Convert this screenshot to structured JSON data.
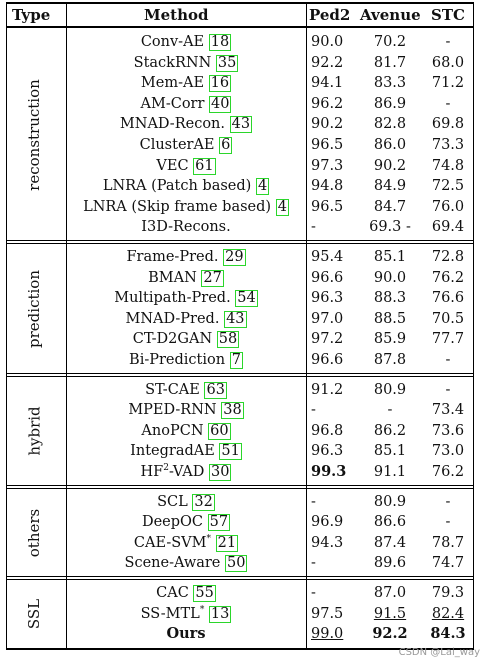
{
  "header": {
    "type": "Type",
    "method": "Method",
    "ped2": "Ped2",
    "avenue": "Avenue",
    "stc": "STC"
  },
  "groups": [
    {
      "type": "reconstruction",
      "rows": [
        {
          "method": "Conv-AE",
          "ref": "18",
          "ped2": "90.0",
          "avenue": "70.2",
          "stc": "-"
        },
        {
          "method": "StackRNN",
          "ref": "35",
          "ped2": "92.2",
          "avenue": "81.7",
          "stc": "68.0"
        },
        {
          "method": "Mem-AE",
          "ref": "16",
          "ped2": "94.1",
          "avenue": "83.3",
          "stc": "71.2"
        },
        {
          "method": "AM-Corr",
          "ref": "40",
          "ped2": "96.2",
          "avenue": "86.9",
          "stc": "-"
        },
        {
          "method": "MNAD-Recon.",
          "ref": "43",
          "ped2": "90.2",
          "avenue": "82.8",
          "stc": "69.8"
        },
        {
          "method": "ClusterAE",
          "ref": "6",
          "ped2": "96.5",
          "avenue": "86.0",
          "stc": "73.3"
        },
        {
          "method": "VEC",
          "ref": "61",
          "ped2": "97.3",
          "avenue": "90.2",
          "stc": "74.8"
        },
        {
          "method": "LNRA (Patch based)",
          "ref": "4",
          "ped2": "94.8",
          "avenue": "84.9",
          "stc": "72.5"
        },
        {
          "method": "LNRA (Skip frame based)",
          "ref": "4",
          "ped2": "96.5",
          "avenue": "84.7",
          "stc": "76.0"
        },
        {
          "method": "I3D-Recons.",
          "ref": "",
          "ped2": "-",
          "avenue": "69.3 -",
          "stc": "69.4"
        }
      ]
    },
    {
      "type": "prediction",
      "rows": [
        {
          "method": "Frame-Pred.",
          "ref": "29",
          "ped2": "95.4",
          "avenue": "85.1",
          "stc": "72.8"
        },
        {
          "method": "BMAN",
          "ref": "27",
          "ped2": "96.6",
          "avenue": "90.0",
          "stc": "76.2"
        },
        {
          "method": "Multipath-Pred.",
          "ref": "54",
          "ped2": "96.3",
          "avenue": "88.3",
          "stc": "76.6"
        },
        {
          "method": "MNAD-Pred.",
          "ref": "43",
          "ped2": "97.0",
          "avenue": "88.5",
          "stc": "70.5"
        },
        {
          "method": "CT-D2GAN",
          "ref": "58",
          "ped2": "97.2",
          "avenue": "85.9",
          "stc": "77.7"
        },
        {
          "method": "Bi-Prediction",
          "ref": "7",
          "ped2": "96.6",
          "avenue": "87.8",
          "stc": "-"
        }
      ]
    },
    {
      "type": "hybrid",
      "rows": [
        {
          "method": "ST-CAE",
          "ref": "63",
          "ped2": "91.2",
          "avenue": "80.9",
          "stc": "-"
        },
        {
          "method": "MPED-RNN",
          "ref": "38",
          "ped2": "-",
          "avenue": "-",
          "stc": "73.4"
        },
        {
          "method": "AnoPCN",
          "ref": "60",
          "ped2": "96.8",
          "avenue": "86.2",
          "stc": "73.6"
        },
        {
          "method": "IntegradAE",
          "ref": "51",
          "ped2": "96.3",
          "avenue": "85.1",
          "stc": "73.0"
        },
        {
          "method": "HF",
          "sup": "2",
          "method_suffix": "-VAD",
          "ref": "30",
          "ped2": "99.3",
          "ped2_bold": true,
          "avenue": "91.1",
          "stc": "76.2"
        }
      ]
    },
    {
      "type": "others",
      "rows": [
        {
          "method": "SCL",
          "ref": "32",
          "ped2": "-",
          "avenue": "80.9",
          "stc": "-"
        },
        {
          "method": "DeepOC",
          "ref": "57",
          "ped2": "96.9",
          "avenue": "86.6",
          "stc": "-"
        },
        {
          "method": "CAE-SVM",
          "sup": "*",
          "ref": "21",
          "ped2": "94.3",
          "avenue": "87.4",
          "stc": "78.7"
        },
        {
          "method": "Scene-Aware",
          "ref": "50",
          "ped2": "-",
          "avenue": "89.6",
          "stc": "74.7"
        }
      ]
    },
    {
      "type": "SSL",
      "rows": [
        {
          "method": "CAC",
          "ref": "55",
          "ped2": "-",
          "avenue": "87.0",
          "stc": "79.3"
        },
        {
          "method": "SS-MTL",
          "sup": "*",
          "ref": "13",
          "ped2": "97.5",
          "avenue": "91.5",
          "avenue_underline": true,
          "stc": "82.4",
          "stc_underline": true
        },
        {
          "method": "Ours",
          "method_bold": true,
          "ref": "",
          "ped2": "99.0",
          "ped2_underline": true,
          "avenue": "92.2",
          "avenue_bold": true,
          "stc": "84.3",
          "stc_bold": true
        }
      ]
    }
  ],
  "watermark": "CSDN @Lai_way"
}
